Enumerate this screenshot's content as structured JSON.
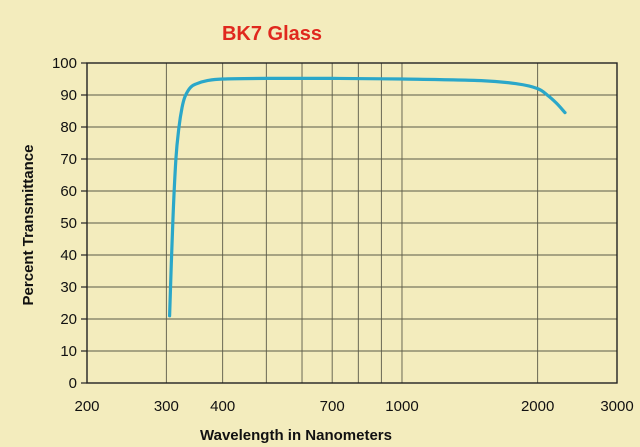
{
  "chart_data": {
    "type": "line",
    "title": "BK7 Glass",
    "xlabel": "Wavelength in Nanometers",
    "ylabel": "Percent Transmittance",
    "x_scale": "log",
    "xlim": [
      200,
      3000
    ],
    "ylim": [
      0,
      100
    ],
    "grid": true,
    "x_ticks": [
      200,
      300,
      400,
      700,
      1000,
      2000,
      3000
    ],
    "x_gridlines": [
      300,
      400,
      500,
      600,
      700,
      800,
      900,
      1000,
      2000
    ],
    "y_ticks": [
      0,
      10,
      20,
      30,
      40,
      50,
      60,
      70,
      80,
      90,
      100
    ],
    "colors": {
      "line": "#2aa7c9",
      "title": "#e0281e",
      "background": "#f3ecbd"
    },
    "series": [
      {
        "x": [
          305,
          310,
          315,
          320,
          325,
          330,
          340,
          350,
          370,
          400,
          500,
          700,
          1000,
          1500,
          1800,
          2000,
          2100,
          2200,
          2300
        ],
        "y": [
          21,
          50,
          70,
          80,
          86,
          89.5,
          92.5,
          93.5,
          94.5,
          95,
          95.2,
          95.2,
          95,
          94.5,
          93.5,
          92,
          90,
          87.5,
          84.5
        ]
      }
    ]
  }
}
